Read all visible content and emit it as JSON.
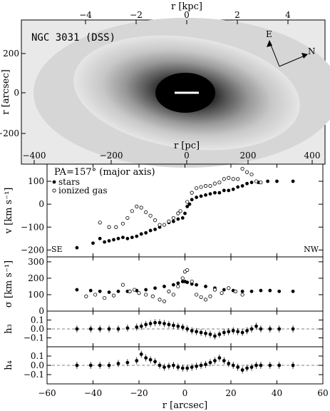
{
  "image": {
    "galaxy_label": "NGC 3031 (DSS)",
    "top_axis_label": "r [kpc]",
    "top_ticks": [
      "−4",
      "−2",
      "0",
      "2",
      "4"
    ],
    "left_axis_label": "r [arcsec]",
    "left_ticks": [
      "200",
      "0",
      "−200"
    ],
    "pc_axis_label": "r [pc]",
    "pc_ticks": [
      "−400",
      "−200",
      "0",
      "200",
      "400"
    ],
    "compass": {
      "east": "E",
      "north": "N"
    }
  },
  "chart_data": [
    {
      "type": "scatter",
      "annotation": "PA=157° (major axis)",
      "ylabel": "v [km s⁻¹]",
      "ylim": [
        -230,
        175
      ],
      "yticks": [
        "100",
        "0",
        "−100",
        "−200"
      ],
      "corner_labels": {
        "left": "SE",
        "right": "NW"
      },
      "series": [
        {
          "name": "stars",
          "marker": "filled",
          "x": [
            -47,
            -40,
            -37,
            -35,
            -33,
            -31,
            -29,
            -27,
            -25,
            -23,
            -21,
            -19,
            -17,
            -15,
            -13,
            -11,
            -9,
            -7,
            -5,
            -3,
            -1,
            0,
            1,
            2,
            3,
            5,
            7,
            9,
            11,
            13,
            15,
            17,
            19,
            21,
            23,
            25,
            27,
            29,
            32,
            36,
            40,
            47
          ],
          "y": [
            -190,
            -170,
            -150,
            -165,
            -160,
            -155,
            -150,
            -145,
            -150,
            -145,
            -140,
            -130,
            -125,
            -115,
            -110,
            -100,
            -90,
            -80,
            -75,
            -65,
            -60,
            -40,
            -10,
            0,
            20,
            30,
            35,
            40,
            45,
            50,
            50,
            60,
            60,
            65,
            75,
            80,
            90,
            95,
            95,
            100,
            100,
            100
          ]
        },
        {
          "name": "ionized gas",
          "marker": "open",
          "x": [
            -37,
            -33,
            -30,
            -27,
            -25,
            -23,
            -21,
            -19,
            -17,
            -15,
            -13,
            -11,
            -9,
            -7,
            -5,
            -3,
            -2,
            1,
            3,
            5,
            7,
            9,
            11,
            13,
            15,
            17,
            19,
            21,
            23,
            25,
            27,
            29,
            31,
            33
          ],
          "y": [
            -80,
            -100,
            -100,
            -85,
            -60,
            -30,
            -10,
            -15,
            -35,
            -50,
            -70,
            -90,
            -90,
            -75,
            -60,
            -40,
            -30,
            10,
            50,
            70,
            75,
            80,
            80,
            90,
            95,
            110,
            115,
            110,
            110,
            155,
            140,
            130,
            100,
            95
          ]
        }
      ]
    },
    {
      "type": "scatter",
      "ylabel": "σ [km s⁻¹]",
      "ylim": [
        0,
        330
      ],
      "yticks": [
        "300",
        "200",
        "100",
        "0"
      ],
      "series": [
        {
          "name": "stars",
          "marker": "filled",
          "x": [
            -47,
            -41,
            -37,
            -33,
            -29,
            -25,
            -21,
            -17,
            -13,
            -9,
            -5,
            -3,
            -1,
            0,
            1,
            3,
            5,
            9,
            13,
            17,
            21,
            25,
            29,
            33,
            37,
            41,
            47
          ],
          "y": [
            130,
            125,
            120,
            115,
            120,
            120,
            125,
            130,
            140,
            150,
            160,
            170,
            180,
            180,
            175,
            165,
            160,
            150,
            140,
            130,
            125,
            120,
            120,
            125,
            125,
            120,
            120
          ]
        },
        {
          "name": "ionized gas",
          "marker": "open",
          "x": [
            -43,
            -39,
            -35,
            -31,
            -27,
            -24,
            -22,
            -20,
            -17,
            -14,
            -11,
            -9,
            -7,
            -5,
            -3,
            -1,
            0,
            1,
            3,
            5,
            7,
            9,
            11,
            13,
            16,
            19,
            22,
            25
          ],
          "y": [
            90,
            100,
            80,
            95,
            160,
            120,
            130,
            110,
            100,
            90,
            70,
            60,
            120,
            100,
            150,
            200,
            240,
            250,
            180,
            100,
            85,
            70,
            90,
            130,
            110,
            140,
            120,
            100
          ]
        }
      ]
    },
    {
      "type": "scatter",
      "ylabel": "h₃",
      "ylim": [
        -0.2,
        0.2
      ],
      "yticks": [
        "0.1",
        "0.0",
        "−0.1"
      ],
      "series": [
        {
          "name": "stars",
          "marker": "filled",
          "x": [
            -47,
            -41,
            -37,
            -33,
            -29,
            -25,
            -21,
            -19,
            -17,
            -15,
            -13,
            -11,
            -9,
            -7,
            -5,
            -3,
            -1,
            1,
            3,
            5,
            7,
            9,
            11,
            13,
            15,
            17,
            19,
            21,
            23,
            25,
            27,
            29,
            31,
            33,
            37,
            41,
            47
          ],
          "y": [
            0.0,
            0.0,
            0.0,
            0.0,
            0.0,
            0.01,
            0.02,
            0.03,
            0.05,
            0.06,
            0.07,
            0.07,
            0.06,
            0.05,
            0.04,
            0.03,
            0.02,
            0.0,
            -0.02,
            -0.03,
            -0.04,
            -0.05,
            -0.06,
            -0.08,
            -0.06,
            -0.04,
            -0.03,
            -0.02,
            -0.03,
            -0.04,
            -0.02,
            0.0,
            0.03,
            0.0,
            0.0,
            0.0,
            0.0
          ]
        }
      ]
    },
    {
      "type": "scatter",
      "ylabel": "h₄",
      "ylim": [
        -0.2,
        0.2
      ],
      "yticks": [
        "0.1",
        "0.0",
        "−0.1"
      ],
      "xlabel": "r [arcsec]",
      "xlim": [
        -60,
        60
      ],
      "xticks": [
        "−60",
        "−40",
        "−20",
        "0",
        "20",
        "40",
        "60"
      ],
      "series": [
        {
          "name": "stars",
          "marker": "filled",
          "x": [
            -47,
            -41,
            -37,
            -33,
            -29,
            -25,
            -21,
            -19,
            -17,
            -15,
            -13,
            -11,
            -9,
            -7,
            -5,
            -3,
            -1,
            1,
            3,
            5,
            7,
            9,
            11,
            13,
            15,
            17,
            19,
            21,
            23,
            25,
            27,
            29,
            31,
            33,
            37,
            41,
            47
          ],
          "y": [
            0.0,
            0.0,
            0.0,
            0.0,
            0.02,
            0.03,
            0.05,
            0.12,
            0.08,
            0.06,
            0.04,
            0.0,
            -0.02,
            -0.01,
            0.0,
            -0.02,
            -0.03,
            -0.03,
            -0.02,
            -0.01,
            0.0,
            0.01,
            0.03,
            0.05,
            0.08,
            0.05,
            0.02,
            0.0,
            -0.02,
            -0.05,
            -0.03,
            -0.02,
            0.0,
            0.0,
            0.0,
            0.0,
            0.0
          ]
        }
      ]
    }
  ]
}
